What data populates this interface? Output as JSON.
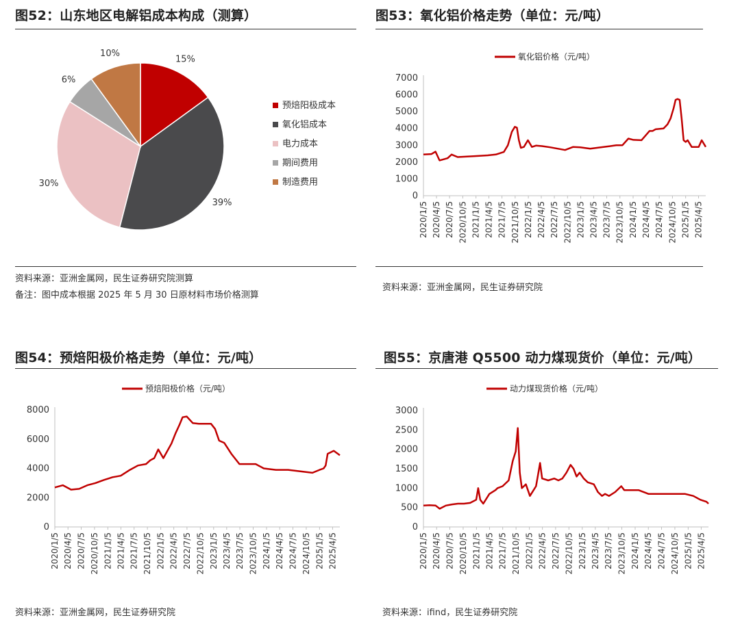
{
  "fig52": {
    "title": "图52：山东地区电解铝成本构成（测算）",
    "source": "资料来源：亚洲金属网，民生证券研究院测算",
    "note": "备注：图中成本根据 2025 年 5 月 30 日原材料市场价格测算"
  },
  "fig53": {
    "title": "图53：氧化铝价格走势（单位：元/吨）",
    "source": "资料来源：亚洲金属网，民生证券研究院"
  },
  "fig54": {
    "title": "图54：预焙阳极价格走势（单位：元/吨）",
    "source": "资料来源：亚洲金属网，民生证券研究院"
  },
  "fig55": {
    "title": "图55：京唐港 Q5500 动力煤现货价（单位：元/吨）",
    "source": "资料来源：ifind，民生证券研究院"
  },
  "colors": {
    "red": "#c00000",
    "darkgray": "#4a4a4c",
    "pink": "#ebc1c3",
    "gray": "#a6a6a6",
    "brown": "#c07844",
    "axis": "#bfbfbf",
    "text": "#333333"
  },
  "chart_data": [
    {
      "id": "fig52",
      "type": "pie",
      "categories": [
        "预焙阳极成本",
        "氧化铝成本",
        "电力成本",
        "期间费用",
        "制造费用"
      ],
      "values": [
        15,
        39,
        30,
        6,
        10
      ],
      "labels": [
        "15%",
        "39%",
        "30%",
        "6%",
        "10%"
      ],
      "legend": "right"
    },
    {
      "id": "fig53",
      "type": "line",
      "series": [
        {
          "name": "氧化铝价格（元/吨）",
          "x": [
            "2020/1/5",
            "2020/3/1",
            "2020/3/29",
            "2020/4/26",
            "2020/6/21",
            "2020/7/19",
            "2020/8/30",
            "2020/12/20",
            "2021/3/28",
            "2021/5/23",
            "2021/7/18",
            "2021/8/15",
            "2021/9/12",
            "2021/10/3",
            "2021/10/17",
            "2021/10/31",
            "2021/11/14",
            "2021/12/5",
            "2022/1/2",
            "2022/1/30",
            "2022/2/27",
            "2022/4/10",
            "2022/6/5",
            "2022/9/18",
            "2022/11/13",
            "2023/1/1",
            "2023/3/12",
            "2023/7/2",
            "2023/9/10",
            "2023/10/22",
            "2023/12/3",
            "2024/1/7",
            "2024/3/3",
            "2024/4/28",
            "2024/5/19",
            "2024/6/9",
            "2024/8/4",
            "2024/9/1",
            "2024/9/22",
            "2024/10/13",
            "2024/10/27",
            "2024/11/10",
            "2024/11/24",
            "2024/12/8",
            "2024/12/22",
            "2025/1/5",
            "2025/1/19",
            "2025/2/16",
            "2025/3/16",
            "2025/4/6",
            "2025/4/27",
            "2025/5/25"
          ],
          "values": [
            2450,
            2480,
            2620,
            2100,
            2230,
            2450,
            2300,
            2350,
            2400,
            2450,
            2600,
            3000,
            3800,
            4100,
            4050,
            3300,
            2850,
            2900,
            3300,
            2900,
            2980,
            2950,
            2880,
            2720,
            2900,
            2880,
            2800,
            2920,
            3000,
            3000,
            3400,
            3320,
            3300,
            3850,
            3850,
            3950,
            4000,
            4250,
            4600,
            5200,
            5700,
            5750,
            5700,
            4600,
            3300,
            3200,
            3300,
            2900,
            2900,
            2900,
            3300,
            2900
          ]
        }
      ],
      "ylim": [
        0,
        7000
      ],
      "yticks": [
        0,
        1000,
        2000,
        3000,
        4000,
        5000,
        6000,
        7000
      ],
      "xticks": [
        "2020/1/5",
        "2020/4/5",
        "2020/7/5",
        "2020/10/5",
        "2021/1/5",
        "2021/4/5",
        "2021/7/5",
        "2021/10/5",
        "2022/1/5",
        "2022/4/5",
        "2022/7/5",
        "2022/10/5",
        "2023/1/5",
        "2023/4/5",
        "2023/7/5",
        "2023/10/5",
        "2024/1/5",
        "2024/4/5",
        "2024/7/5",
        "2024/10/5",
        "2025/1/5",
        "2025/4/5"
      ],
      "legend": "top"
    },
    {
      "id": "fig54",
      "type": "line",
      "series": [
        {
          "name": "预焙阳极价格（元/吨）",
          "x": [
            "2020/1/5",
            "2020/3/1",
            "2020/4/26",
            "2020/6/21",
            "2020/8/16",
            "2020/10/11",
            "2020/12/6",
            "2021/2/7",
            "2021/4/4",
            "2021/6/6",
            "2021/8/1",
            "2021/9/26",
            "2021/10/24",
            "2021/11/21",
            "2021/12/19",
            "2022/1/23",
            "2022/3/20",
            "2022/4/17",
            "2022/5/15",
            "2022/6/5",
            "2022/7/3",
            "2022/8/14",
            "2022/9/25",
            "2022/11/20",
            "2022/12/18",
            "2023/1/15",
            "2023/2/12",
            "2023/3/19",
            "2023/5/7",
            "2023/7/2",
            "2023/8/27",
            "2023/10/22",
            "2023/12/17",
            "2024/3/10",
            "2024/6/2",
            "2024/8/25",
            "2024/11/17",
            "2025/1/5",
            "2025/2/2",
            "2025/2/16",
            "2025/3/2",
            "2025/4/13",
            "2025/5/25"
          ],
          "values": [
            2700,
            2850,
            2550,
            2600,
            2850,
            3000,
            3200,
            3400,
            3500,
            3900,
            4200,
            4300,
            4550,
            4700,
            5300,
            4700,
            5700,
            6400,
            7000,
            7500,
            7550,
            7100,
            7050,
            7050,
            7050,
            6700,
            5900,
            5750,
            5000,
            4300,
            4300,
            4300,
            4000,
            3900,
            3900,
            3800,
            3700,
            3900,
            4000,
            4200,
            5000,
            5200,
            4900
          ]
        }
      ],
      "ylim": [
        0,
        8000
      ],
      "yticks": [
        0,
        2000,
        4000,
        6000,
        8000
      ],
      "xticks": [
        "2020/1/5",
        "2020/4/5",
        "2020/7/5",
        "2020/10/5",
        "2021/1/5",
        "2021/4/5",
        "2021/7/5",
        "2021/10/5",
        "2022/1/5",
        "2022/4/5",
        "2022/7/5",
        "2022/10/5",
        "2023/1/5",
        "2023/4/5",
        "2023/7/5",
        "2023/10/5",
        "2024/1/5",
        "2024/4/5",
        "2024/7/5",
        "2024/10/5",
        "2025/1/5",
        "2025/4/5"
      ],
      "legend": "top"
    },
    {
      "id": "fig55",
      "type": "line",
      "series": [
        {
          "name": "动力煤现货价格（元/吨）",
          "x": [
            "2020/1/5",
            "2020/2/16",
            "2020/3/29",
            "2020/4/26",
            "2020/6/7",
            "2020/7/19",
            "2020/8/30",
            "2020/10/11",
            "2020/11/22",
            "2021/1/3",
            "2021/1/17",
            "2021/1/31",
            "2021/2/21",
            "2021/4/4",
            "2021/5/16",
            "2021/5/30",
            "2021/7/4",
            "2021/8/15",
            "2021/9/12",
            "2021/10/3",
            "2021/10/17",
            "2021/10/31",
            "2021/11/14",
            "2021/12/12",
            "2022/1/9",
            "2022/2/20",
            "2022/3/6",
            "2022/3/20",
            "2022/4/3",
            "2022/5/15",
            "2022/6/26",
            "2022/7/24",
            "2022/8/21",
            "2022/9/18",
            "2022/10/16",
            "2022/11/6",
            "2022/11/27",
            "2022/12/18",
            "2023/1/15",
            "2023/2/12",
            "2023/3/26",
            "2023/4/23",
            "2023/5/21",
            "2023/6/11",
            "2023/7/9",
            "2023/8/20",
            "2023/10/1",
            "2023/10/22",
            "2023/12/3",
            "2024/1/28",
            "2024/4/7",
            "2024/6/2",
            "2024/7/28",
            "2024/9/8",
            "2024/10/20",
            "2024/12/15",
            "2025/2/9",
            "2025/3/30",
            "2025/5/11",
            "2025/5/25"
          ],
          "values": [
            550,
            560,
            550,
            470,
            550,
            580,
            600,
            600,
            620,
            700,
            1000,
            700,
            600,
            850,
            950,
            1000,
            1050,
            1200,
            1700,
            1950,
            2550,
            1400,
            1000,
            1100,
            800,
            1050,
            1350,
            1650,
            1250,
            1200,
            1250,
            1200,
            1250,
            1400,
            1600,
            1500,
            1300,
            1400,
            1250,
            1150,
            1100,
            900,
            800,
            850,
            800,
            900,
            1050,
            950,
            950,
            950,
            850,
            850,
            850,
            850,
            850,
            850,
            800,
            700,
            650,
            600
          ]
        }
      ],
      "ylim": [
        0,
        3000
      ],
      "yticks": [
        0,
        500,
        1000,
        1500,
        2000,
        2500,
        3000
      ],
      "xticks": [
        "2020/1/5",
        "2020/4/5",
        "2020/7/5",
        "2020/10/5",
        "2021/1/5",
        "2021/4/5",
        "2021/7/5",
        "2021/10/5",
        "2022/1/5",
        "2022/4/5",
        "2022/7/5",
        "2022/10/5",
        "2023/1/5",
        "2023/4/5",
        "2023/7/5",
        "2023/10/5",
        "2024/1/5",
        "2024/4/5",
        "2024/7/5",
        "2024/10/5",
        "2025/1/5",
        "2025/4/5"
      ],
      "legend": "top"
    }
  ]
}
